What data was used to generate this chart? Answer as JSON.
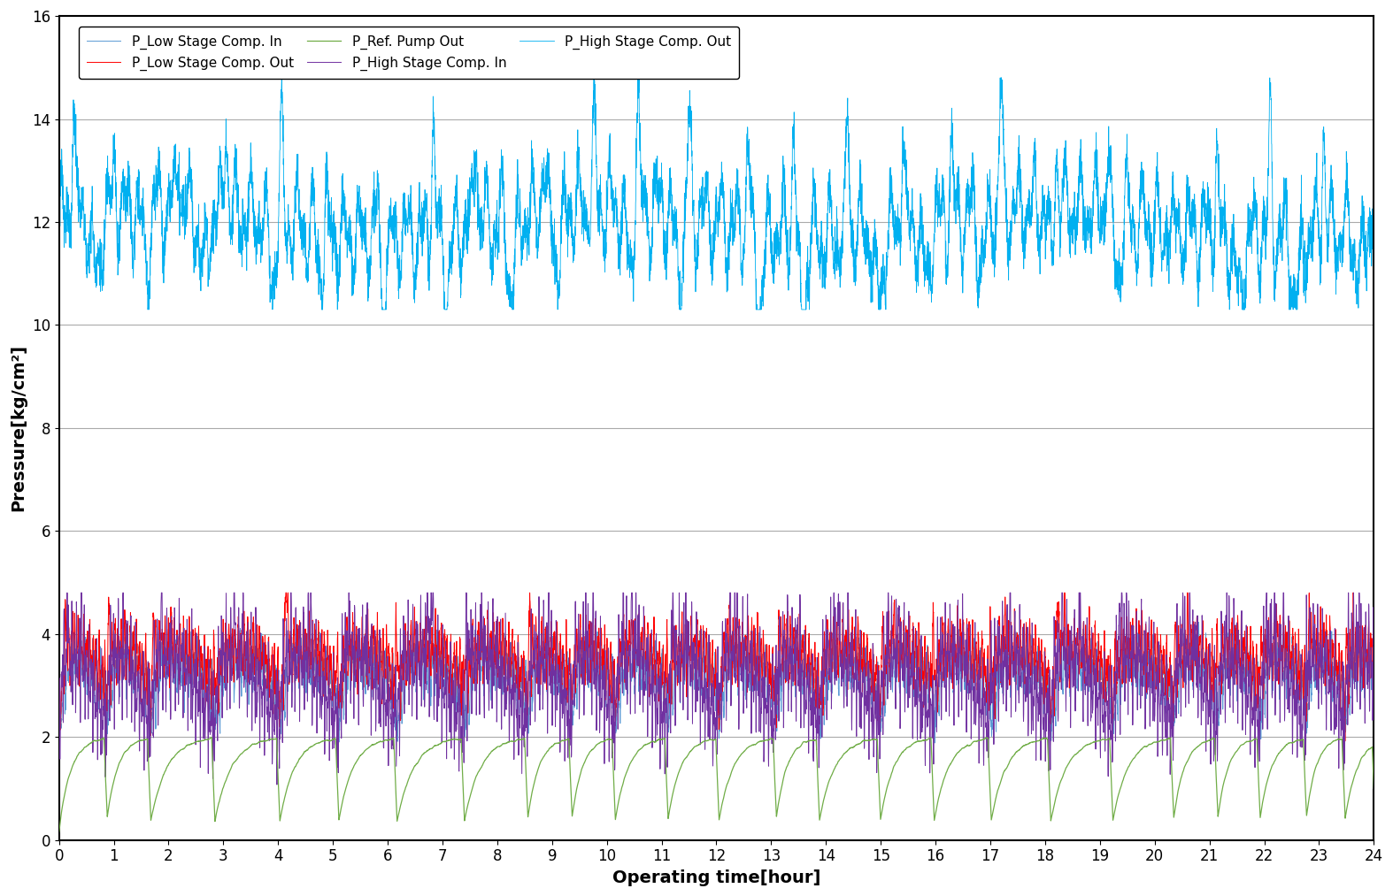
{
  "xlabel": "Operating time[hour]",
  "ylabel": "Pressure[kg/cm²]",
  "xlim": [
    0,
    24
  ],
  "ylim": [
    0,
    16
  ],
  "yticks": [
    0,
    2,
    4,
    6,
    8,
    10,
    12,
    14,
    16
  ],
  "xticks": [
    0,
    1,
    2,
    3,
    4,
    5,
    6,
    7,
    8,
    9,
    10,
    11,
    12,
    13,
    14,
    15,
    16,
    17,
    18,
    19,
    20,
    21,
    22,
    23,
    24
  ],
  "colors": {
    "P_Low Stage Comp. In": "#5b9bd5",
    "P_Low Stage Comp. Out": "#ff0000",
    "P_Ref. Pump Out": "#70ad47",
    "P_High Stage Comp. In": "#7030a0",
    "P_High Stage Comp. Out": "#00b0f0"
  },
  "grid_color": "#aaaaaa",
  "background_color": "#ffffff",
  "n_points": 8000
}
